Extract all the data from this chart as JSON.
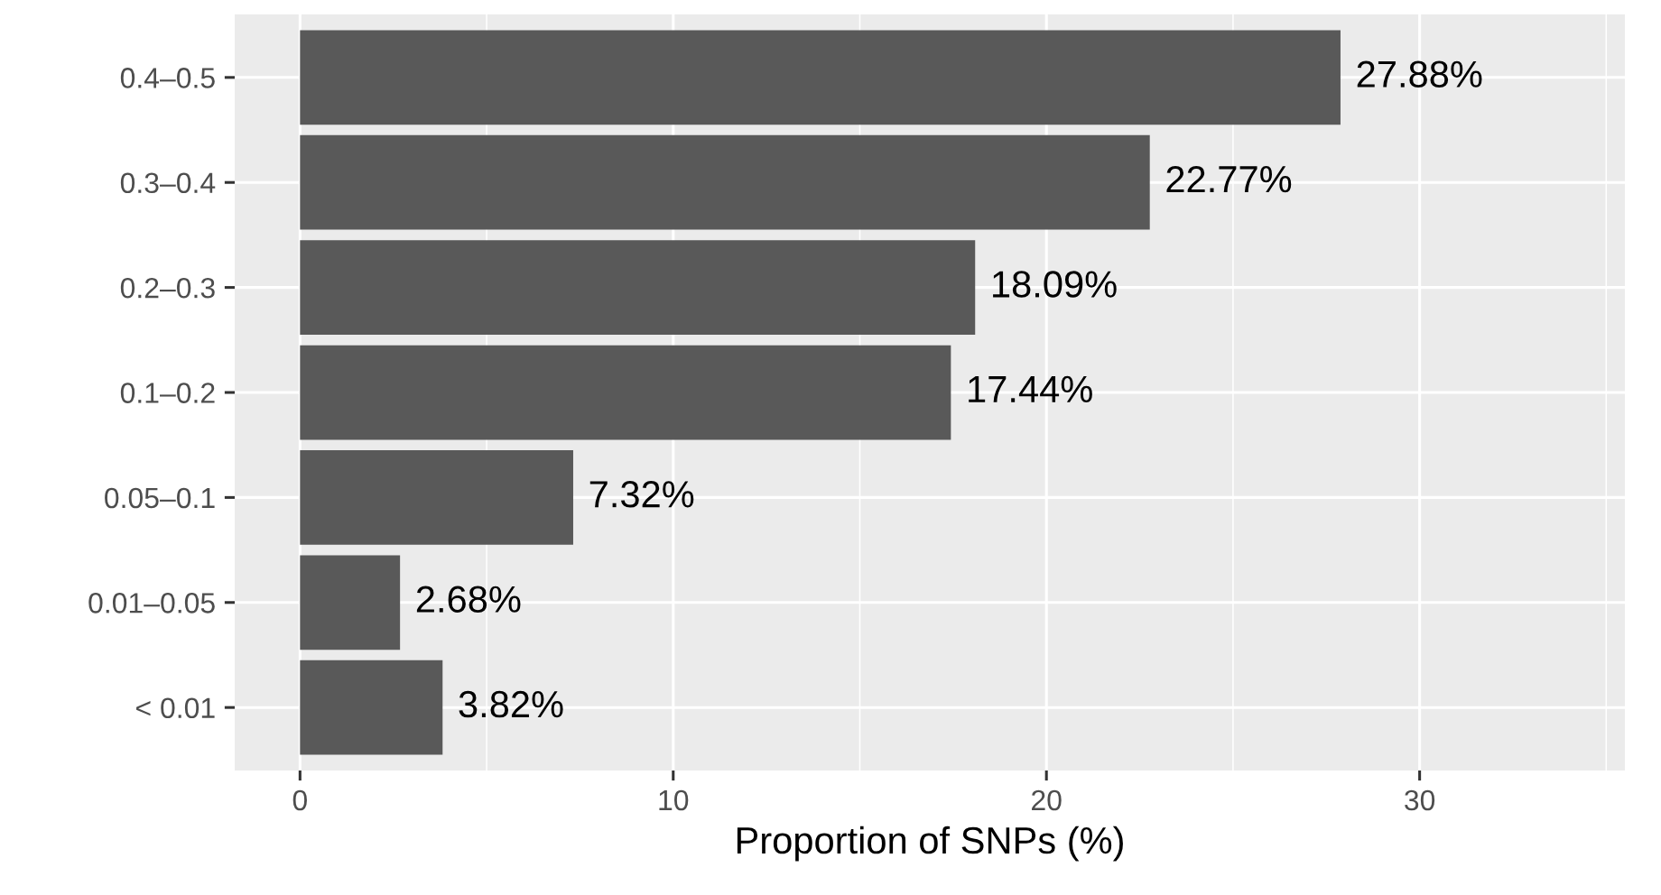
{
  "chart_data": {
    "type": "bar",
    "orientation": "horizontal",
    "xlabel": "Proportion of SNPs (%)",
    "categories": [
      "0.4–0.5",
      "0.3–0.4",
      "0.2–0.3",
      "0.1–0.2",
      "0.05–0.1",
      "0.01–0.05",
      "< 0.01"
    ],
    "values": [
      27.88,
      22.77,
      18.09,
      17.44,
      7.32,
      2.68,
      3.82
    ],
    "value_labels": [
      "27.88%",
      "22.77%",
      "18.09%",
      "17.44%",
      "7.32%",
      "2.68%",
      "3.82%"
    ],
    "color": "#595959",
    "xlim": [
      -1.75,
      35.5
    ],
    "xticks": [
      0,
      10,
      20,
      30
    ],
    "grid": true,
    "legend": false
  }
}
